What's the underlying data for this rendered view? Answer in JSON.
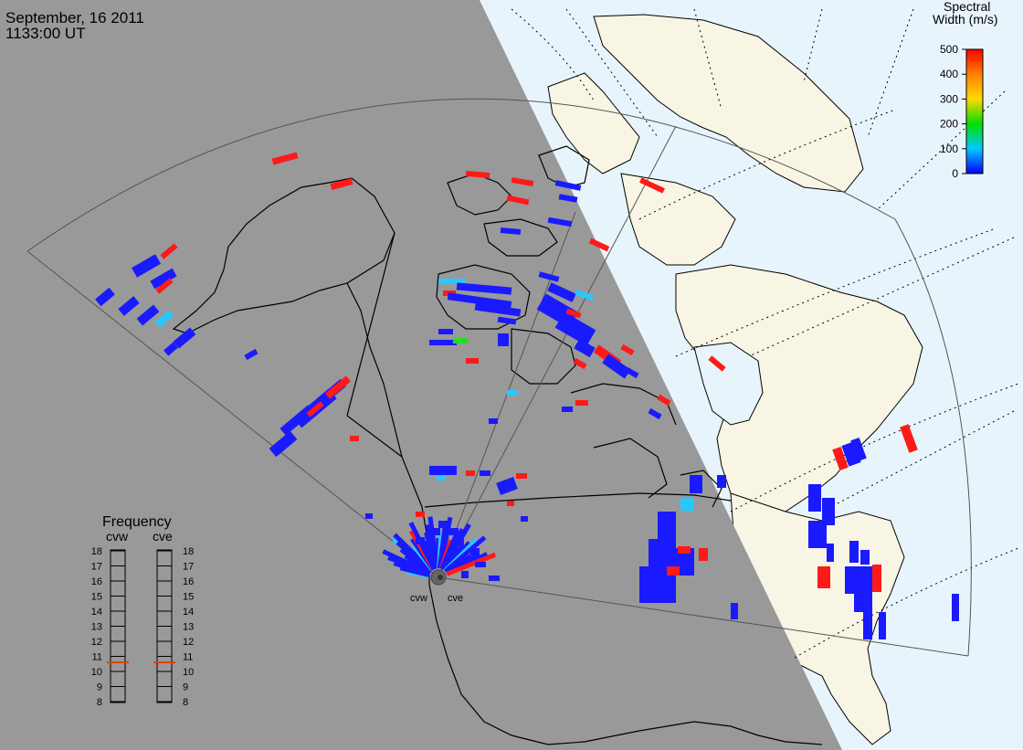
{
  "header": {
    "date": "September, 16 2011",
    "time": "1133:00 UT"
  },
  "colorbar": {
    "title_line1": "Spectral",
    "title_line2": "Width (m/s)",
    "ticks": [
      "500",
      "400",
      "300",
      "200",
      "100",
      "0"
    ],
    "colors": {
      "low": "#0000ff",
      "v100": "#00c8ff",
      "v200": "#00dd00",
      "v300": "#ffd800",
      "high": "#ff0000"
    }
  },
  "frequency_panel": {
    "title": "Frequency",
    "radars": [
      "cvw",
      "cve"
    ],
    "scale": [
      "18",
      "17",
      "16",
      "15",
      "14",
      "13",
      "12",
      "11",
      "10",
      "9",
      "8"
    ],
    "current_mhz": {
      "cvw": 10.6,
      "cve": 10.6
    },
    "indicator_color": "#e04000"
  },
  "radar_sites": [
    "cvw",
    "cve"
  ],
  "colors": {
    "night": "#999999",
    "day_land": "#f8f5e4",
    "day_ocean": "#e8f4fb",
    "coast": "#000000"
  }
}
